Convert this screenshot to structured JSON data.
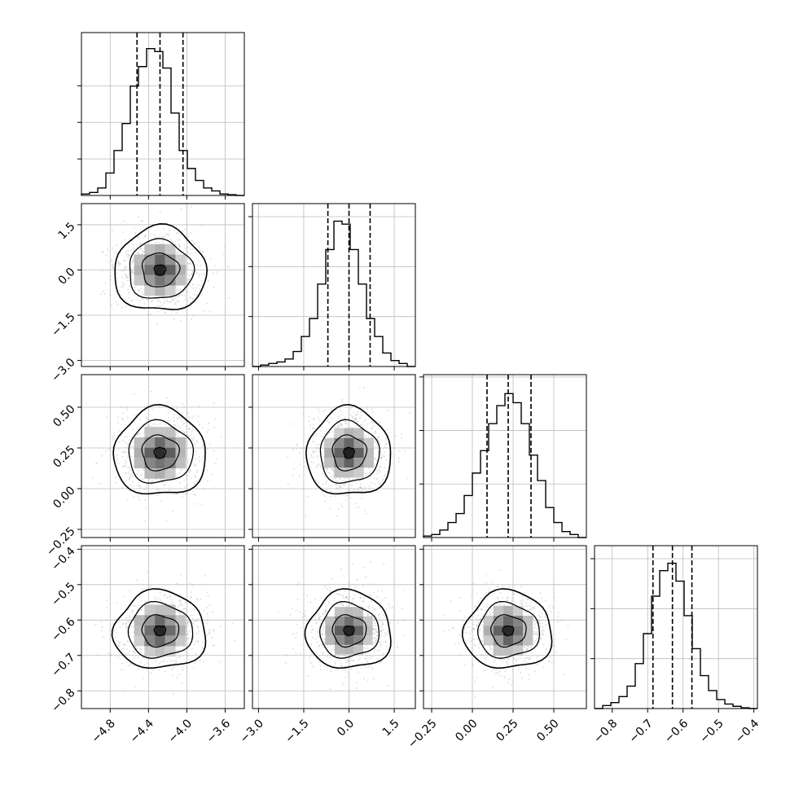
{
  "chart_data": {
    "type": "corner",
    "grid": true,
    "bins": 20,
    "params": [
      {
        "range": [
          -5.1,
          -3.4
        ],
        "ticks": [
          -4.8,
          -4.4,
          -4.0,
          -3.6
        ],
        "tick_labels": [
          "−4.8",
          "−4.4",
          "−4.0",
          "−3.6"
        ],
        "median": -4.28,
        "q16": -4.52,
        "q84": -4.04,
        "hist_peak": 4100
      },
      {
        "range": [
          -3.2,
          2.2
        ],
        "ticks": [
          -3.0,
          -1.5,
          0.0,
          1.5
        ],
        "tick_labels": [
          "−3.0",
          "−1.5",
          "0.0",
          "1.5"
        ],
        "median": 0.0,
        "q16": -0.7,
        "q84": 0.7,
        "hist_peak": 3000
      },
      {
        "range": [
          -0.3,
          0.7
        ],
        "ticks": [
          -0.25,
          0.0,
          0.25,
          0.5
        ],
        "tick_labels": [
          "−0.25",
          "0.00",
          "0.25",
          "0.50"
        ],
        "median": 0.22,
        "q16": 0.09,
        "q84": 0.36,
        "hist_peak": 2800
      },
      {
        "range": [
          -0.85,
          -0.39
        ],
        "ticks": [
          -0.8,
          -0.7,
          -0.6,
          -0.5,
          -0.4
        ],
        "tick_labels": [
          "−0.8",
          "−0.7",
          "−0.6",
          "−0.5",
          "−0.4"
        ],
        "median": -0.63,
        "q16": -0.685,
        "q84": -0.575,
        "hist_peak": 3000
      }
    ],
    "histograms": [
      [
        0.01,
        0.02,
        0.05,
        0.15,
        0.3,
        0.48,
        0.73,
        0.86,
        0.98,
        0.96,
        0.85,
        0.55,
        0.3,
        0.18,
        0.1,
        0.05,
        0.03,
        0.01,
        0.005,
        0.0
      ],
      [
        0.0,
        0.01,
        0.02,
        0.03,
        0.05,
        0.1,
        0.2,
        0.32,
        0.55,
        0.78,
        0.97,
        0.95,
        0.78,
        0.55,
        0.32,
        0.2,
        0.09,
        0.04,
        0.02,
        0.0
      ],
      [
        0.01,
        0.02,
        0.05,
        0.1,
        0.16,
        0.28,
        0.43,
        0.58,
        0.76,
        0.88,
        0.96,
        0.9,
        0.76,
        0.55,
        0.38,
        0.2,
        0.1,
        0.04,
        0.02,
        0.0
      ],
      [
        0.0,
        0.02,
        0.04,
        0.08,
        0.15,
        0.3,
        0.5,
        0.75,
        0.92,
        0.97,
        0.85,
        0.62,
        0.4,
        0.22,
        0.12,
        0.06,
        0.03,
        0.015,
        0.005,
        0.0
      ]
    ],
    "hist_yticks": [
      1000,
      2000,
      3000
    ]
  }
}
